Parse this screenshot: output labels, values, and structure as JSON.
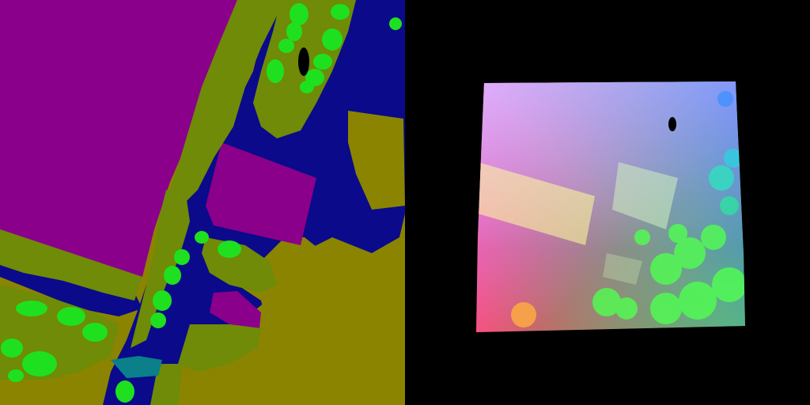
{
  "layout": {
    "left_panel": {
      "kind": "segmentation-map"
    },
    "right_panel": {
      "kind": "point-cloud-render"
    }
  },
  "palette": {
    "building": "#8A008A",
    "grass": "#6F8B07",
    "tree": "#1FE01F",
    "road": "#0A0A8A",
    "sand": "#8A8400",
    "water": "#0B7F8A",
    "background": "#000000"
  }
}
